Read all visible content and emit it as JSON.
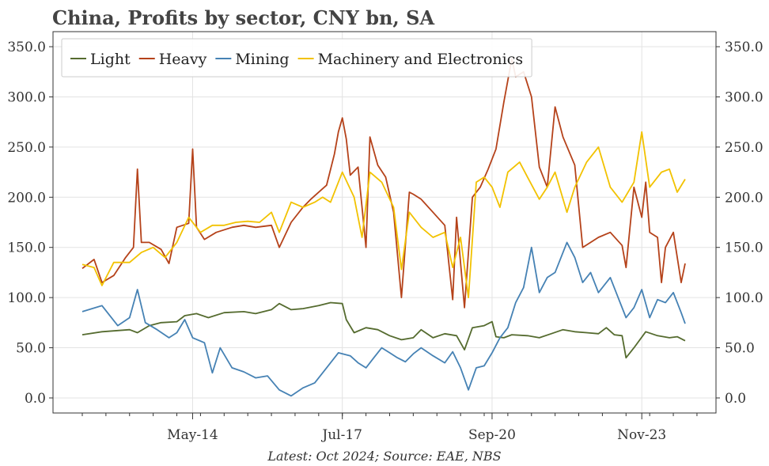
{
  "chart_data": {
    "type": "line",
    "title": "China, Profits by sector, CNY bn, SA",
    "source": "Latest: Oct 2024; Source: EAE, NBS",
    "xlabel": "",
    "ylabel": "",
    "x_range": [
      "2012-01",
      "2024-10"
    ],
    "x_ticks": [
      {
        "date": "2014-05",
        "label": "May-14"
      },
      {
        "date": "2017-07",
        "label": "Jul-17"
      },
      {
        "date": "2020-09",
        "label": "Sep-20"
      },
      {
        "date": "2023-11",
        "label": "Nov-23"
      }
    ],
    "ylim": [
      -15,
      365
    ],
    "y_ticks": [
      0.0,
      50.0,
      100.0,
      150.0,
      200.0,
      250.0,
      300.0,
      350.0
    ],
    "y_tick_labels": [
      "0.0",
      "50.0",
      "100.0",
      "150.0",
      "200.0",
      "250.0",
      "300.0",
      "350.0"
    ],
    "dual_y_axis_mirrored": true,
    "grid": true,
    "legend_position": "top-left",
    "colors": {
      "Light": "#556b2f",
      "Heavy": "#b5421a",
      "Mining": "#4682b4",
      "Machinery and Electronics": "#f2c200"
    },
    "series": [
      {
        "name": "Light",
        "points": [
          [
            "2012-01",
            63
          ],
          [
            "2012-06",
            66
          ],
          [
            "2013-01",
            68
          ],
          [
            "2013-03",
            65
          ],
          [
            "2013-06",
            72
          ],
          [
            "2013-09",
            75
          ],
          [
            "2014-01",
            76
          ],
          [
            "2014-03",
            82
          ],
          [
            "2014-06",
            84
          ],
          [
            "2014-09",
            80
          ],
          [
            "2015-01",
            85
          ],
          [
            "2015-06",
            86
          ],
          [
            "2015-09",
            84
          ],
          [
            "2016-01",
            88
          ],
          [
            "2016-03",
            94
          ],
          [
            "2016-06",
            88
          ],
          [
            "2016-09",
            89
          ],
          [
            "2017-01",
            92
          ],
          [
            "2017-04",
            95
          ],
          [
            "2017-07",
            94
          ],
          [
            "2017-08",
            78
          ],
          [
            "2017-10",
            65
          ],
          [
            "2018-01",
            70
          ],
          [
            "2018-04",
            68
          ],
          [
            "2018-07",
            62
          ],
          [
            "2018-10",
            58
          ],
          [
            "2019-01",
            60
          ],
          [
            "2019-03",
            68
          ],
          [
            "2019-06",
            60
          ],
          [
            "2019-09",
            64
          ],
          [
            "2019-12",
            62
          ],
          [
            "2020-02",
            48
          ],
          [
            "2020-04",
            70
          ],
          [
            "2020-07",
            72
          ],
          [
            "2020-09",
            76
          ],
          [
            "2020-10",
            61
          ],
          [
            "2020-12",
            60
          ],
          [
            "2021-02",
            63
          ],
          [
            "2021-06",
            62
          ],
          [
            "2021-09",
            60
          ],
          [
            "2021-12",
            64
          ],
          [
            "2022-03",
            68
          ],
          [
            "2022-06",
            66
          ],
          [
            "2022-09",
            65
          ],
          [
            "2022-12",
            64
          ],
          [
            "2023-02",
            70
          ],
          [
            "2023-04",
            63
          ],
          [
            "2023-06",
            62
          ],
          [
            "2023-07",
            40
          ],
          [
            "2023-09",
            50
          ],
          [
            "2023-12",
            66
          ],
          [
            "2024-03",
            62
          ],
          [
            "2024-06",
            60
          ],
          [
            "2024-08",
            61
          ],
          [
            "2024-10",
            57
          ]
        ]
      },
      {
        "name": "Heavy",
        "points": [
          [
            "2012-01",
            129
          ],
          [
            "2012-04",
            138
          ],
          [
            "2012-06",
            115
          ],
          [
            "2012-09",
            122
          ],
          [
            "2012-12",
            140
          ],
          [
            "2013-02",
            150
          ],
          [
            "2013-03",
            228
          ],
          [
            "2013-04",
            155
          ],
          [
            "2013-06",
            155
          ],
          [
            "2013-09",
            148
          ],
          [
            "2013-11",
            134
          ],
          [
            "2014-01",
            170
          ],
          [
            "2014-04",
            174
          ],
          [
            "2014-05",
            248
          ],
          [
            "2014-06",
            170
          ],
          [
            "2014-08",
            158
          ],
          [
            "2014-11",
            165
          ],
          [
            "2015-03",
            170
          ],
          [
            "2015-06",
            172
          ],
          [
            "2015-09",
            170
          ],
          [
            "2016-01",
            172
          ],
          [
            "2016-03",
            150
          ],
          [
            "2016-06",
            175
          ],
          [
            "2016-09",
            190
          ],
          [
            "2016-11",
            198
          ],
          [
            "2017-01",
            205
          ],
          [
            "2017-03",
            212
          ],
          [
            "2017-05",
            243
          ],
          [
            "2017-06",
            265
          ],
          [
            "2017-07",
            279
          ],
          [
            "2017-08",
            258
          ],
          [
            "2017-09",
            222
          ],
          [
            "2017-11",
            230
          ],
          [
            "2018-01",
            150
          ],
          [
            "2018-02",
            260
          ],
          [
            "2018-04",
            232
          ],
          [
            "2018-06",
            220
          ],
          [
            "2018-08",
            185
          ],
          [
            "2018-10",
            100
          ],
          [
            "2018-12",
            205
          ],
          [
            "2019-01",
            203
          ],
          [
            "2019-03",
            198
          ],
          [
            "2019-06",
            185
          ],
          [
            "2019-09",
            172
          ],
          [
            "2019-11",
            98
          ],
          [
            "2019-12",
            180
          ],
          [
            "2020-02",
            90
          ],
          [
            "2020-04",
            200
          ],
          [
            "2020-06",
            210
          ],
          [
            "2020-08",
            228
          ],
          [
            "2020-10",
            248
          ],
          [
            "2020-12",
            295
          ],
          [
            "2021-02",
            338
          ],
          [
            "2021-03",
            320
          ],
          [
            "2021-05",
            325
          ],
          [
            "2021-07",
            300
          ],
          [
            "2021-09",
            230
          ],
          [
            "2021-11",
            210
          ],
          [
            "2022-01",
            290
          ],
          [
            "2022-03",
            260
          ],
          [
            "2022-06",
            232
          ],
          [
            "2022-08",
            150
          ],
          [
            "2022-10",
            155
          ],
          [
            "2022-12",
            160
          ],
          [
            "2023-03",
            165
          ],
          [
            "2023-06",
            152
          ],
          [
            "2023-07",
            130
          ],
          [
            "2023-09",
            210
          ],
          [
            "2023-11",
            180
          ],
          [
            "2023-12",
            215
          ],
          [
            "2024-01",
            165
          ],
          [
            "2024-03",
            160
          ],
          [
            "2024-04",
            115
          ],
          [
            "2024-05",
            150
          ],
          [
            "2024-07",
            165
          ],
          [
            "2024-09",
            115
          ],
          [
            "2024-10",
            134
          ]
        ]
      },
      {
        "name": "Mining",
        "points": [
          [
            "2012-01",
            86
          ],
          [
            "2012-06",
            92
          ],
          [
            "2012-10",
            72
          ],
          [
            "2013-01",
            80
          ],
          [
            "2013-03",
            108
          ],
          [
            "2013-05",
            75
          ],
          [
            "2013-08",
            68
          ],
          [
            "2013-11",
            60
          ],
          [
            "2014-01",
            65
          ],
          [
            "2014-03",
            78
          ],
          [
            "2014-05",
            60
          ],
          [
            "2014-08",
            55
          ],
          [
            "2014-10",
            25
          ],
          [
            "2014-12",
            50
          ],
          [
            "2015-03",
            30
          ],
          [
            "2015-06",
            26
          ],
          [
            "2015-09",
            20
          ],
          [
            "2015-12",
            22
          ],
          [
            "2016-03",
            8
          ],
          [
            "2016-06",
            2
          ],
          [
            "2016-09",
            10
          ],
          [
            "2016-12",
            15
          ],
          [
            "2017-03",
            30
          ],
          [
            "2017-06",
            45
          ],
          [
            "2017-09",
            42
          ],
          [
            "2017-11",
            35
          ],
          [
            "2018-01",
            30
          ],
          [
            "2018-03",
            40
          ],
          [
            "2018-05",
            50
          ],
          [
            "2018-07",
            45
          ],
          [
            "2018-09",
            40
          ],
          [
            "2018-11",
            36
          ],
          [
            "2019-01",
            44
          ],
          [
            "2019-03",
            50
          ],
          [
            "2019-06",
            42
          ],
          [
            "2019-09",
            35
          ],
          [
            "2019-11",
            46
          ],
          [
            "2020-01",
            30
          ],
          [
            "2020-03",
            8
          ],
          [
            "2020-05",
            30
          ],
          [
            "2020-07",
            32
          ],
          [
            "2020-09",
            45
          ],
          [
            "2020-11",
            60
          ],
          [
            "2021-01",
            70
          ],
          [
            "2021-03",
            95
          ],
          [
            "2021-05",
            110
          ],
          [
            "2021-07",
            150
          ],
          [
            "2021-09",
            105
          ],
          [
            "2021-11",
            120
          ],
          [
            "2022-01",
            125
          ],
          [
            "2022-04",
            155
          ],
          [
            "2022-06",
            140
          ],
          [
            "2022-08",
            115
          ],
          [
            "2022-10",
            125
          ],
          [
            "2022-12",
            105
          ],
          [
            "2023-03",
            120
          ],
          [
            "2023-05",
            100
          ],
          [
            "2023-07",
            80
          ],
          [
            "2023-09",
            90
          ],
          [
            "2023-11",
            108
          ],
          [
            "2024-01",
            80
          ],
          [
            "2024-03",
            98
          ],
          [
            "2024-05",
            95
          ],
          [
            "2024-07",
            105
          ],
          [
            "2024-09",
            85
          ],
          [
            "2024-10",
            74
          ]
        ]
      },
      {
        "name": "Machinery and Electronics",
        "points": [
          [
            "2012-01",
            133
          ],
          [
            "2012-04",
            130
          ],
          [
            "2012-06",
            112
          ],
          [
            "2012-09",
            135
          ],
          [
            "2013-01",
            135
          ],
          [
            "2013-04",
            145
          ],
          [
            "2013-07",
            150
          ],
          [
            "2013-10",
            140
          ],
          [
            "2014-01",
            155
          ],
          [
            "2014-04",
            180
          ],
          [
            "2014-07",
            165
          ],
          [
            "2014-10",
            172
          ],
          [
            "2015-01",
            172
          ],
          [
            "2015-04",
            175
          ],
          [
            "2015-07",
            176
          ],
          [
            "2015-10",
            175
          ],
          [
            "2016-01",
            185
          ],
          [
            "2016-03",
            165
          ],
          [
            "2016-06",
            195
          ],
          [
            "2016-09",
            190
          ],
          [
            "2016-12",
            195
          ],
          [
            "2017-02",
            200
          ],
          [
            "2017-04",
            195
          ],
          [
            "2017-07",
            225
          ],
          [
            "2017-10",
            200
          ],
          [
            "2017-12",
            160
          ],
          [
            "2018-02",
            225
          ],
          [
            "2018-05",
            215
          ],
          [
            "2018-08",
            190
          ],
          [
            "2018-10",
            128
          ],
          [
            "2018-12",
            185
          ],
          [
            "2019-03",
            170
          ],
          [
            "2019-06",
            160
          ],
          [
            "2019-09",
            165
          ],
          [
            "2019-11",
            130
          ],
          [
            "2020-01",
            160
          ],
          [
            "2020-03",
            100
          ],
          [
            "2020-05",
            215
          ],
          [
            "2020-07",
            220
          ],
          [
            "2020-09",
            210
          ],
          [
            "2020-11",
            190
          ],
          [
            "2021-01",
            225
          ],
          [
            "2021-04",
            235
          ],
          [
            "2021-06",
            220
          ],
          [
            "2021-09",
            198
          ],
          [
            "2021-11",
            210
          ],
          [
            "2022-01",
            225
          ],
          [
            "2022-04",
            185
          ],
          [
            "2022-06",
            210
          ],
          [
            "2022-09",
            235
          ],
          [
            "2022-12",
            250
          ],
          [
            "2023-03",
            210
          ],
          [
            "2023-06",
            195
          ],
          [
            "2023-09",
            215
          ],
          [
            "2023-11",
            265
          ],
          [
            "2024-01",
            210
          ],
          [
            "2024-04",
            225
          ],
          [
            "2024-06",
            228
          ],
          [
            "2024-08",
            205
          ],
          [
            "2024-10",
            218
          ]
        ]
      }
    ]
  }
}
